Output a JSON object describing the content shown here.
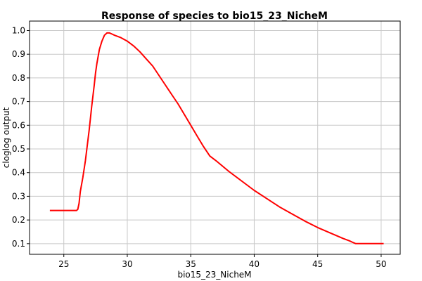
{
  "chart_data": {
    "type": "line",
    "title": "Response of species to bio15_23_NicheM",
    "xlabel": "bio15_23_NicheM",
    "ylabel": "cloglog output",
    "xlim": [
      22.3,
      51.5
    ],
    "ylim": [
      0.055,
      1.04
    ],
    "x_ticks": [
      25,
      30,
      35,
      40,
      45,
      50
    ],
    "y_ticks": [
      0.1,
      0.2,
      0.3,
      0.4,
      0.5,
      0.6,
      0.7,
      0.8,
      0.9,
      1.0
    ],
    "x_tick_labels": [
      "25",
      "30",
      "35",
      "40",
      "45",
      "50"
    ],
    "y_tick_labels": [
      "0.1",
      "0.2",
      "0.3",
      "0.4",
      "0.5",
      "0.6",
      "0.7",
      "0.8",
      "0.9",
      "1.0"
    ],
    "grid": true,
    "series": [
      {
        "color": "#ff0000",
        "x": [
          23.9,
          24.5,
          25.0,
          25.5,
          26.0,
          26.1,
          26.2,
          26.3,
          26.5,
          26.7,
          27.0,
          27.2,
          27.4,
          27.5,
          27.6,
          27.7,
          27.8,
          28.0,
          28.2,
          28.4,
          28.6,
          28.8,
          29.0,
          29.5,
          30.0,
          30.5,
          31.0,
          31.5,
          32.0,
          32.5,
          33.0,
          33.5,
          34.0,
          34.5,
          35.0,
          35.5,
          36.0,
          36.5,
          37.0,
          38.0,
          39.0,
          40.0,
          41.0,
          42.0,
          43.0,
          44.0,
          45.0,
          46.0,
          47.0,
          47.5,
          47.7,
          48.0,
          49.0,
          50.0,
          50.2
        ],
        "y": [
          0.24,
          0.24,
          0.24,
          0.24,
          0.24,
          0.245,
          0.27,
          0.32,
          0.38,
          0.45,
          0.58,
          0.68,
          0.77,
          0.82,
          0.86,
          0.89,
          0.92,
          0.955,
          0.98,
          0.99,
          0.99,
          0.985,
          0.98,
          0.97,
          0.955,
          0.935,
          0.91,
          0.88,
          0.85,
          0.81,
          0.77,
          0.73,
          0.69,
          0.645,
          0.6,
          0.555,
          0.51,
          0.47,
          0.45,
          0.405,
          0.365,
          0.325,
          0.29,
          0.255,
          0.225,
          0.195,
          0.168,
          0.145,
          0.122,
          0.112,
          0.107,
          0.1,
          0.1,
          0.1,
          0.1
        ]
      }
    ]
  }
}
